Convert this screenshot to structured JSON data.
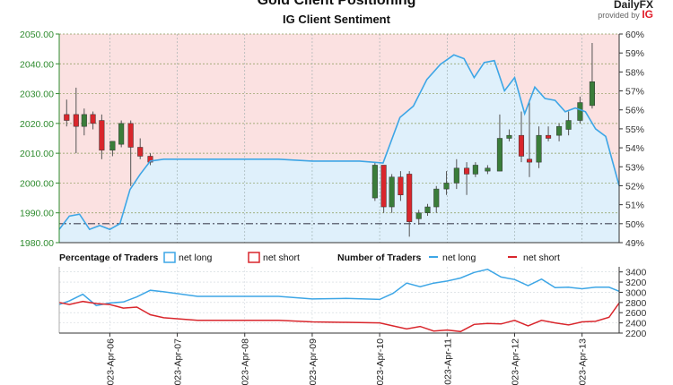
{
  "header": {
    "title": "Gold Client Positioning",
    "subtitle": "IG Client Sentiment",
    "brand_top": "DailyFX",
    "brand_provided": "provided by",
    "brand_ig": "IG"
  },
  "legend": {
    "pct_title": "Percentage of Traders",
    "pct_long": "net long",
    "pct_short": "net short",
    "num_title": "Number of Traders",
    "num_long": "net long",
    "num_short": "net short"
  },
  "colors": {
    "long_line": "#3da6e6",
    "long_fill": "#dff0fb",
    "short_fill": "#fbe1e1",
    "short_line": "#d9262c",
    "candle_up": "#3a7d3a",
    "candle_down": "#d9262c",
    "wick": "#555555",
    "price_axis": "#2e8b2e"
  },
  "chart_data": [
    {
      "type": "candlestick",
      "title": "Gold Client Positioning",
      "subtitle": "IG Client Sentiment",
      "price_axis": {
        "ylim": [
          1980,
          2050
        ],
        "ticks": [
          "1980.00",
          "1990.00",
          "2000.00",
          "2010.00",
          "2020.00",
          "2030.00",
          "2040.00",
          "2050.00"
        ]
      },
      "pct_axis": {
        "ylim": [
          49,
          60
        ],
        "ticks": [
          "49%",
          "50%",
          "51%",
          "52%",
          "53%",
          "54%",
          "55%",
          "56%",
          "57%",
          "58%",
          "59%",
          "60%"
        ]
      },
      "x_ticks": [
        "2023-Apr-06",
        "2023-Apr-07",
        "2023-Apr-08",
        "2023-Apr-09",
        "2023-Apr-10",
        "2023-Apr-11",
        "2023-Apr-12",
        "2023-Apr-13"
      ],
      "x_range": [
        5.25,
        13.55
      ],
      "reference_line_pct": 50,
      "candles": [
        {
          "t": 5.36,
          "o": 2023,
          "h": 2028,
          "l": 2019,
          "c": 2021
        },
        {
          "t": 5.5,
          "o": 2023,
          "h": 2032,
          "l": 2010,
          "c": 2019
        },
        {
          "t": 5.62,
          "o": 2019,
          "h": 2025,
          "l": 2016,
          "c": 2023
        },
        {
          "t": 5.75,
          "o": 2023,
          "h": 2024,
          "l": 2018,
          "c": 2020
        },
        {
          "t": 5.88,
          "o": 2021,
          "h": 2023,
          "l": 2008,
          "c": 2011
        },
        {
          "t": 6.04,
          "o": 2011,
          "h": 2014,
          "l": 2009,
          "c": 2014
        },
        {
          "t": 6.17,
          "o": 2013,
          "h": 2021,
          "l": 2012,
          "c": 2020
        },
        {
          "t": 6.31,
          "o": 2020,
          "h": 2021,
          "l": 1999,
          "c": 2012
        },
        {
          "t": 6.45,
          "o": 2012,
          "h": 2015,
          "l": 2008,
          "c": 2009
        },
        {
          "t": 6.6,
          "o": 2009,
          "h": 2010,
          "l": 2006,
          "c": 2007
        },
        {
          "t": 9.93,
          "o": 1995,
          "h": 2007,
          "l": 1994,
          "c": 2006
        },
        {
          "t": 10.06,
          "o": 2006,
          "h": 2006,
          "l": 1990,
          "c": 1992
        },
        {
          "t": 10.18,
          "o": 1992,
          "h": 2003,
          "l": 1990,
          "c": 2002
        },
        {
          "t": 10.31,
          "o": 2002,
          "h": 2004,
          "l": 1994,
          "c": 1996
        },
        {
          "t": 10.44,
          "o": 2003,
          "h": 2004,
          "l": 1982,
          "c": 1987
        },
        {
          "t": 10.58,
          "o": 1988,
          "h": 1991,
          "l": 1986,
          "c": 1990
        },
        {
          "t": 10.71,
          "o": 1990,
          "h": 1993,
          "l": 1989,
          "c": 1992
        },
        {
          "t": 10.84,
          "o": 1992,
          "h": 1999,
          "l": 1990,
          "c": 1998
        },
        {
          "t": 10.99,
          "o": 1998,
          "h": 2004,
          "l": 1996,
          "c": 2000
        },
        {
          "t": 11.14,
          "o": 2000,
          "h": 2008,
          "l": 1998,
          "c": 2005
        },
        {
          "t": 11.29,
          "o": 2005,
          "h": 2007,
          "l": 1996,
          "c": 2003
        },
        {
          "t": 11.42,
          "o": 2003,
          "h": 2007,
          "l": 2002,
          "c": 2006
        },
        {
          "t": 11.6,
          "o": 2004,
          "h": 2006,
          "l": 2003,
          "c": 2005
        },
        {
          "t": 11.78,
          "o": 2004,
          "h": 2023,
          "l": 2004,
          "c": 2015
        },
        {
          "t": 11.92,
          "o": 2015,
          "h": 2018,
          "l": 2014,
          "c": 2016
        },
        {
          "t": 12.1,
          "o": 2016,
          "h": 2024,
          "l": 2007,
          "c": 2009
        },
        {
          "t": 12.22,
          "o": 2008,
          "h": 2028,
          "l": 2002,
          "c": 2007
        },
        {
          "t": 12.36,
          "o": 2007,
          "h": 2019,
          "l": 2005,
          "c": 2016
        },
        {
          "t": 12.5,
          "o": 2016,
          "h": 2019,
          "l": 2014,
          "c": 2015
        },
        {
          "t": 12.66,
          "o": 2016,
          "h": 2020,
          "l": 2014,
          "c": 2019
        },
        {
          "t": 12.8,
          "o": 2018,
          "h": 2024,
          "l": 2016,
          "c": 2021
        },
        {
          "t": 12.97,
          "o": 2021,
          "h": 2029,
          "l": 2020,
          "c": 2027
        },
        {
          "t": 13.15,
          "o": 2026,
          "h": 2047,
          "l": 2025,
          "c": 2034
        }
      ],
      "net_long_pct": {
        "t": [
          5.25,
          5.4,
          5.55,
          5.7,
          5.85,
          6.0,
          6.15,
          6.3,
          6.45,
          6.6,
          6.8,
          7.3,
          8.0,
          8.5,
          9.0,
          9.3,
          9.7,
          10.05,
          10.3,
          10.5,
          10.7,
          10.9,
          11.1,
          11.25,
          11.4,
          11.55,
          11.7,
          11.85,
          12.0,
          12.15,
          12.3,
          12.45,
          12.6,
          12.75,
          12.9,
          13.05,
          13.2,
          13.35,
          13.55
        ],
        "values": [
          49.7,
          50.4,
          50.5,
          49.7,
          49.9,
          49.7,
          50.0,
          51.8,
          52.6,
          53.3,
          53.4,
          53.4,
          53.4,
          53.4,
          53.3,
          53.3,
          53.3,
          53.2,
          55.6,
          56.2,
          57.6,
          58.4,
          58.9,
          58.7,
          57.7,
          58.5,
          58.6,
          57.0,
          57.7,
          55.8,
          57.2,
          56.6,
          56.5,
          55.9,
          56.1,
          55.9,
          55.0,
          54.6,
          52.0
        ]
      }
    },
    {
      "type": "line",
      "title": "Number of Traders",
      "ylim": [
        2200,
        3500
      ],
      "y_ticks": [
        "2200",
        "2400",
        "2600",
        "2800",
        "3000",
        "3200",
        "3400"
      ],
      "series": [
        {
          "name": "net long",
          "t": [
            5.25,
            5.4,
            5.6,
            5.8,
            6.0,
            6.2,
            6.4,
            6.6,
            6.8,
            7.3,
            8.0,
            8.5,
            9.0,
            9.5,
            10.0,
            10.2,
            10.4,
            10.6,
            10.8,
            11.0,
            11.2,
            11.4,
            11.6,
            11.8,
            12.0,
            12.2,
            12.4,
            12.6,
            12.8,
            13.0,
            13.2,
            13.4,
            13.55
          ],
          "values": [
            2760,
            2830,
            2960,
            2740,
            2790,
            2810,
            2910,
            3040,
            3010,
            2920,
            2920,
            2920,
            2870,
            2880,
            2860,
            2980,
            3180,
            3110,
            3180,
            3220,
            3280,
            3390,
            3450,
            3300,
            3250,
            3130,
            3260,
            3090,
            3100,
            3070,
            3100,
            3100,
            3020
          ]
        },
        {
          "name": "net short",
          "t": [
            5.25,
            5.4,
            5.6,
            5.8,
            6.0,
            6.2,
            6.4,
            6.6,
            6.8,
            7.3,
            8.0,
            8.5,
            9.0,
            9.5,
            10.0,
            10.2,
            10.4,
            10.6,
            10.8,
            11.0,
            11.2,
            11.4,
            11.6,
            11.8,
            12.0,
            12.2,
            12.4,
            12.6,
            12.8,
            13.0,
            13.2,
            13.4,
            13.55
          ],
          "values": [
            2800,
            2760,
            2820,
            2780,
            2760,
            2690,
            2710,
            2560,
            2500,
            2450,
            2450,
            2450,
            2420,
            2410,
            2400,
            2340,
            2280,
            2330,
            2240,
            2260,
            2230,
            2370,
            2390,
            2380,
            2450,
            2340,
            2450,
            2400,
            2360,
            2420,
            2430,
            2510,
            2790
          ]
        }
      ]
    }
  ]
}
